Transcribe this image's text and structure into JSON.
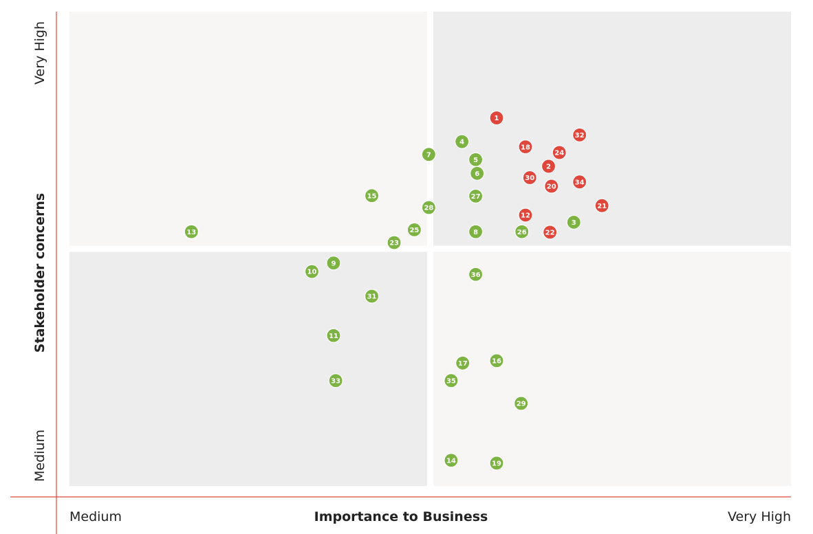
{
  "colors": {
    "axis_line": "#e0473c",
    "material": "#e0473c",
    "other": "#7cb342",
    "quadrant_light": "#f7f6f5",
    "quadrant_dark": "#ededed"
  },
  "chart_data": {
    "type": "scatter",
    "title": "",
    "xlabel": "Importance to Business",
    "ylabel": "Stakeholder concerns",
    "x_tick_low": "Medium",
    "x_tick_high": "Very High",
    "y_tick_low": "Medium",
    "y_tick_high": "Very High",
    "xlim": [
      0,
      100
    ],
    "ylim": [
      0,
      100
    ],
    "grid": false,
    "legend": "none",
    "series": [
      {
        "group": "red",
        "points": [
          {
            "label": "1",
            "x": 59.2,
            "y": 77.6
          },
          {
            "label": "2",
            "x": 66.4,
            "y": 67.4
          },
          {
            "label": "12",
            "x": 63.2,
            "y": 57.1
          },
          {
            "label": "18",
            "x": 63.2,
            "y": 71.5
          },
          {
            "label": "20",
            "x": 66.8,
            "y": 63.2
          },
          {
            "label": "21",
            "x": 73.8,
            "y": 59.1
          },
          {
            "label": "22",
            "x": 66.6,
            "y": 53.5
          },
          {
            "label": "24",
            "x": 67.9,
            "y": 70.3
          },
          {
            "label": "30",
            "x": 63.8,
            "y": 65.0
          },
          {
            "label": "32",
            "x": 70.7,
            "y": 74.0
          },
          {
            "label": "34",
            "x": 70.7,
            "y": 64.1
          }
        ]
      },
      {
        "group": "green",
        "points": [
          {
            "label": "3",
            "x": 69.9,
            "y": 55.6
          },
          {
            "label": "4",
            "x": 54.4,
            "y": 72.6
          },
          {
            "label": "5",
            "x": 56.3,
            "y": 68.8
          },
          {
            "label": "6",
            "x": 56.5,
            "y": 65.9
          },
          {
            "label": "7",
            "x": 49.8,
            "y": 69.9
          },
          {
            "label": "8",
            "x": 56.3,
            "y": 53.6
          },
          {
            "label": "9",
            "x": 36.6,
            "y": 47.0
          },
          {
            "label": "10",
            "x": 33.6,
            "y": 45.2
          },
          {
            "label": "11",
            "x": 36.6,
            "y": 31.7
          },
          {
            "label": "13",
            "x": 16.9,
            "y": 53.6
          },
          {
            "label": "14",
            "x": 52.9,
            "y": 5.4
          },
          {
            "label": "15",
            "x": 41.9,
            "y": 61.2
          },
          {
            "label": "16",
            "x": 59.2,
            "y": 26.4
          },
          {
            "label": "17",
            "x": 54.5,
            "y": 25.9
          },
          {
            "label": "19",
            "x": 59.2,
            "y": 4.8
          },
          {
            "label": "23",
            "x": 45.0,
            "y": 51.3
          },
          {
            "label": "25",
            "x": 47.8,
            "y": 54.0
          },
          {
            "label": "26",
            "x": 62.7,
            "y": 53.6
          },
          {
            "label": "27",
            "x": 56.3,
            "y": 61.1
          },
          {
            "label": "28",
            "x": 49.8,
            "y": 58.7
          },
          {
            "label": "29",
            "x": 62.6,
            "y": 17.4
          },
          {
            "label": "31",
            "x": 41.9,
            "y": 40.0
          },
          {
            "label": "33",
            "x": 36.9,
            "y": 22.2
          },
          {
            "label": "35",
            "x": 52.9,
            "y": 22.2
          },
          {
            "label": "36",
            "x": 56.3,
            "y": 44.6
          }
        ]
      }
    ]
  }
}
